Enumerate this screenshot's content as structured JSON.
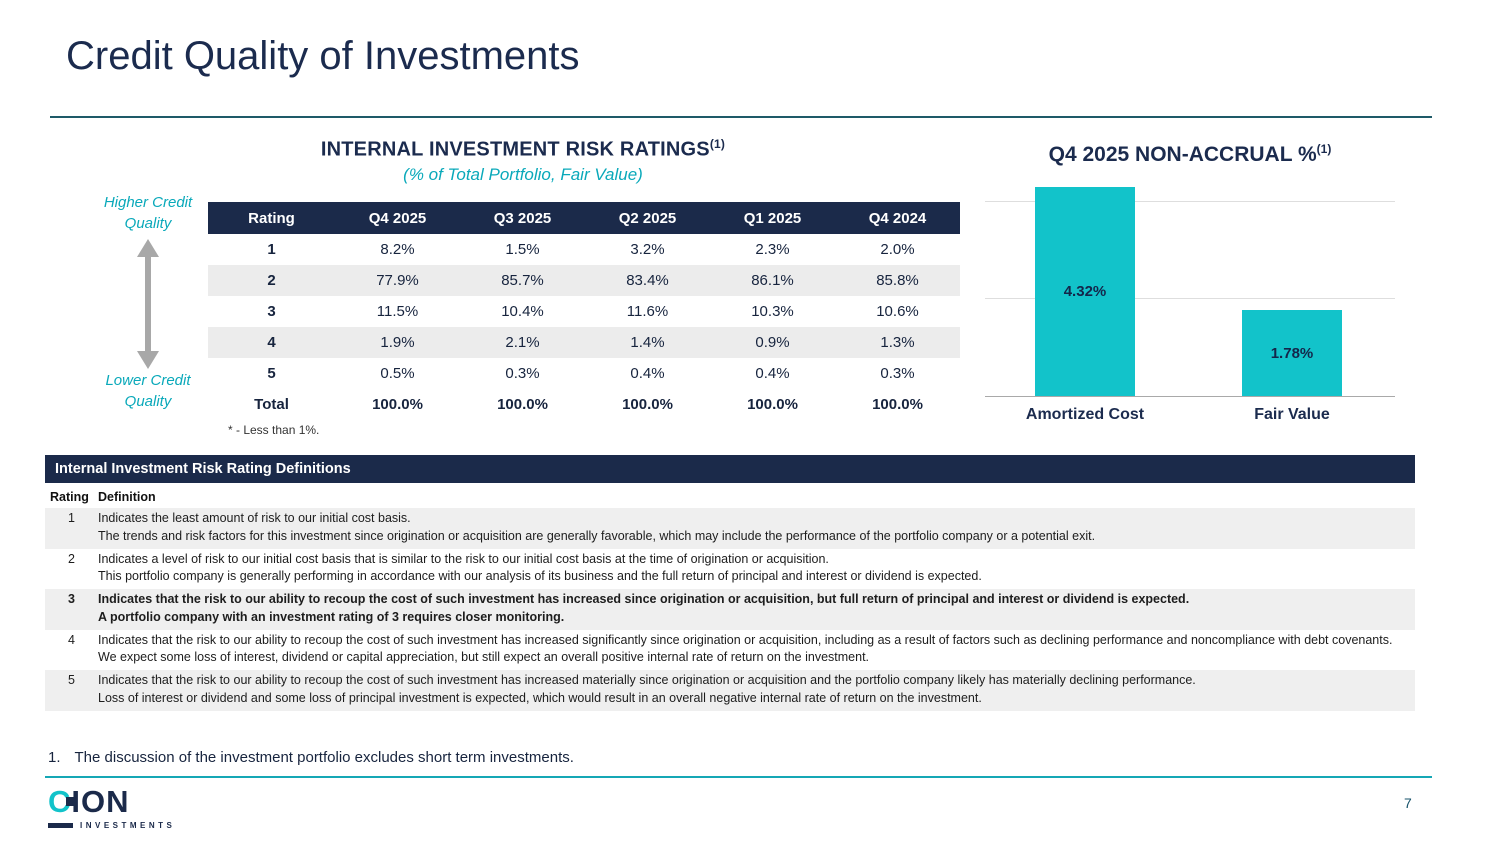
{
  "colors": {
    "navy": "#1b2a4a",
    "teal_bar": "#12c3ca",
    "teal_text": "#0aa9ba",
    "row_shade": "#ececec"
  },
  "slide": {
    "title": "Credit Quality of Investments",
    "page_number": "7",
    "footnote_number": "1.",
    "footnote_text": "The discussion of the investment portfolio excludes short term investments."
  },
  "logo": {
    "c": "C",
    "rest": "ION",
    "subtext": "INVESTMENTS"
  },
  "ratings": {
    "title": "INTERNAL INVESTMENT RISK RATINGS",
    "title_sup": "(1)",
    "subtitle": "(% of Total Portfolio, Fair Value)",
    "higher_label": "Higher Credit Quality",
    "lower_label": "Lower Credit Quality",
    "note": "* - Less than 1%.",
    "table": {
      "headers": [
        "Rating",
        "Q4 2025",
        "Q3 2025",
        "Q2 2025",
        "Q1 2025",
        "Q4 2024"
      ],
      "rows": [
        {
          "rating": "1",
          "values": [
            "8.2%",
            "1.5%",
            "3.2%",
            "2.3%",
            "2.0%"
          ]
        },
        {
          "rating": "2",
          "values": [
            "77.9%",
            "85.7%",
            "83.4%",
            "86.1%",
            "85.8%"
          ]
        },
        {
          "rating": "3",
          "values": [
            "11.5%",
            "10.4%",
            "11.6%",
            "10.3%",
            "10.6%"
          ]
        },
        {
          "rating": "4",
          "values": [
            "1.9%",
            "2.1%",
            "1.4%",
            "0.9%",
            "1.3%"
          ]
        },
        {
          "rating": "5",
          "values": [
            "0.5%",
            "0.3%",
            "0.4%",
            "0.4%",
            "0.3%"
          ]
        }
      ],
      "total": {
        "label": "Total",
        "values": [
          "100.0%",
          "100.0%",
          "100.0%",
          "100.0%",
          "100.0%"
        ]
      }
    }
  },
  "chart_data": {
    "type": "bar",
    "title": "Q4 2025 NON-ACCRUAL %",
    "title_sup": "(1)",
    "categories": [
      "Amortized Cost",
      "Fair Value"
    ],
    "values": [
      4.32,
      1.78
    ],
    "labels": [
      "4.32%",
      "1.78%"
    ],
    "ylim": [
      0,
      4.4
    ],
    "gridlines": [
      2,
      4
    ],
    "bar_color": "#12c3ca",
    "legend": "none",
    "grid": "horizontal"
  },
  "definitions": {
    "header": "Internal Investment Risk Rating Definitions",
    "col_rating": "Rating",
    "col_definition": "Definition",
    "rows": [
      {
        "rating": "1",
        "p1": "Indicates the least amount of risk to our initial cost basis.",
        "p2": "The trends and risk factors for this investment since origination or acquisition are generally favorable, which may include the performance of the portfolio company or a potential exit."
      },
      {
        "rating": "2",
        "p1": "Indicates a level of risk to our initial cost basis that is similar to the risk to our initial cost basis at the time of origination or acquisition.",
        "p2": "This portfolio company is generally performing in accordance with our analysis of its business and the full return of principal and interest or dividend is expected."
      },
      {
        "rating": "3",
        "p1": "Indicates that the risk to our ability to recoup the cost of such investment has increased since origination or acquisition, but full return of principal and interest or dividend is expected.",
        "p2": "A portfolio company with an investment rating of 3 requires closer monitoring."
      },
      {
        "rating": "4",
        "p1": "Indicates that the risk to our ability to recoup the cost of such investment has increased significantly since origination or acquisition, including as a result of factors such as declining performance and noncompliance with debt covenants.",
        "p2": "We expect some loss of interest, dividend or capital appreciation, but still expect an overall positive internal rate of return on the investment."
      },
      {
        "rating": "5",
        "p1": "Indicates that the risk to our ability to recoup the cost of such investment has increased materially since origination or acquisition and the portfolio company likely has materially declining performance.",
        "p2": "Loss of interest or dividend and some loss of principal investment is expected, which would result in an overall negative internal rate of return on the investment."
      }
    ]
  }
}
